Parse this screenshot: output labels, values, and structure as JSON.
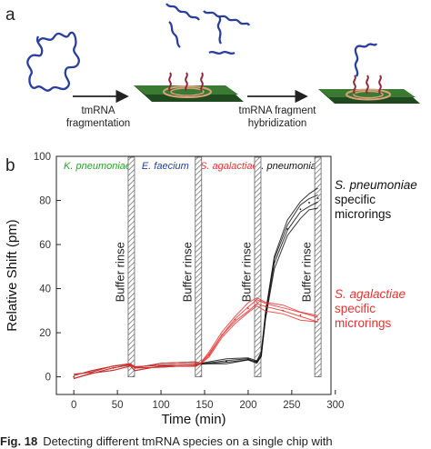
{
  "panel_a": {
    "letter": "a",
    "step1_lines": [
      "tmRNA",
      "fragmentation"
    ],
    "step2_lines": [
      "tmRNA fragment",
      "hybridization"
    ]
  },
  "panel_b": {
    "letter": "b"
  },
  "colors": {
    "k_pneumoniae": "#2ca02c",
    "e_faecium": "#1f3fa0",
    "s_agalactiae": "#e8312f",
    "s_pneumoniae": "#111111",
    "chip": "#2f6b2a",
    "rna": "#2a3f9a",
    "probe": "#8a2a3a"
  },
  "rinse_label": "Buffer rinse",
  "side_labels": {
    "pneumo": [
      "S. pneumoniae",
      "specific",
      "microrings"
    ],
    "agal": [
      "S. agalactiae",
      "specific",
      "microrings"
    ]
  },
  "caption": {
    "label": "Fig. 18",
    "text": "Detecting different tmRNA species on a single chip with"
  },
  "chart_data": {
    "type": "line",
    "xlabel": "Time (min)",
    "ylabel": "Relative Shift (pm)",
    "xlim": [
      -20,
      295
    ],
    "ylim": [
      -8,
      100
    ],
    "x_ticks": [
      0,
      50,
      100,
      150,
      200,
      250,
      300
    ],
    "y_ticks": [
      0,
      20,
      40,
      60,
      80,
      100
    ],
    "grid": false,
    "phases": [
      {
        "name": "K. pneumoniae",
        "x_center": 27,
        "color": "#2ca02c"
      },
      {
        "name": "E. faecium",
        "x_center": 105,
        "color": "#1f3fa0"
      },
      {
        "name": "S. agalactiae",
        "x_center": 178,
        "color": "#e8312f"
      },
      {
        "name": "S. pneumoniae",
        "x_center": 246,
        "color": "#111111"
      }
    ],
    "rinses": [
      66,
      143,
      211,
      280
    ],
    "series": [
      {
        "name": "S. pneumoniae specific microrings",
        "color": "#111111",
        "x": [
          0,
          20,
          45,
          65,
          70,
          100,
          140,
          145,
          175,
          200,
          210,
          215,
          220,
          230,
          245,
          260,
          270,
          280
        ],
        "y": [
          0,
          2,
          4,
          5,
          4,
          5,
          6,
          6,
          7,
          8,
          7,
          10,
          28,
          52,
          67,
          76,
          79,
          81
        ]
      },
      {
        "name": "S. agalactiae specific microrings",
        "color": "#e8312f",
        "x": [
          0,
          20,
          45,
          65,
          70,
          100,
          140,
          145,
          155,
          170,
          185,
          200,
          210,
          220,
          240,
          260,
          280
        ],
        "y": [
          0,
          2,
          4,
          5,
          4,
          5,
          6,
          6,
          10,
          19,
          26,
          31,
          34,
          32,
          30,
          28,
          26
        ]
      }
    ]
  }
}
